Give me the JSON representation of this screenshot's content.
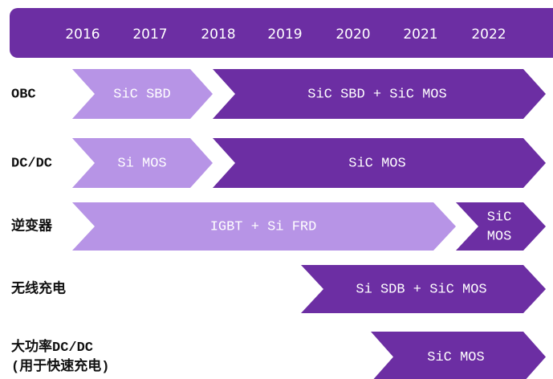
{
  "header": {
    "years": [
      "2016",
      "2017",
      "2018",
      "2019",
      "2020",
      "2021",
      "2022"
    ]
  },
  "rows": [
    {
      "label": [
        "OBC"
      ],
      "segments": [
        {
          "text": [
            "SiC SBD"
          ],
          "color": "#b794e6"
        },
        {
          "text": [
            "SiC SBD + SiC MOS"
          ],
          "color": "#6c2ea3"
        }
      ]
    },
    {
      "label": [
        "DC/DC"
      ],
      "segments": [
        {
          "text": [
            "Si MOS"
          ],
          "color": "#b794e6"
        },
        {
          "text": [
            "SiC MOS"
          ],
          "color": "#6c2ea3"
        }
      ]
    },
    {
      "label": [
        "逆变器"
      ],
      "segments": [
        {
          "text": [
            "IGBT + Si FRD"
          ],
          "color": "#b794e6"
        },
        {
          "text": [
            "SiC",
            "MOS"
          ],
          "color": "#6c2ea3"
        }
      ]
    },
    {
      "label": [
        "无线充电"
      ],
      "segments": [
        {
          "text": [
            "Si SDB + SiC MOS"
          ],
          "color": "#6c2ea3"
        }
      ]
    },
    {
      "label": [
        "大功率DC/DC",
        "(用于快速充电)"
      ],
      "segments": [
        {
          "text": [
            "SiC MOS"
          ],
          "color": "#6c2ea3"
        }
      ]
    }
  ]
}
